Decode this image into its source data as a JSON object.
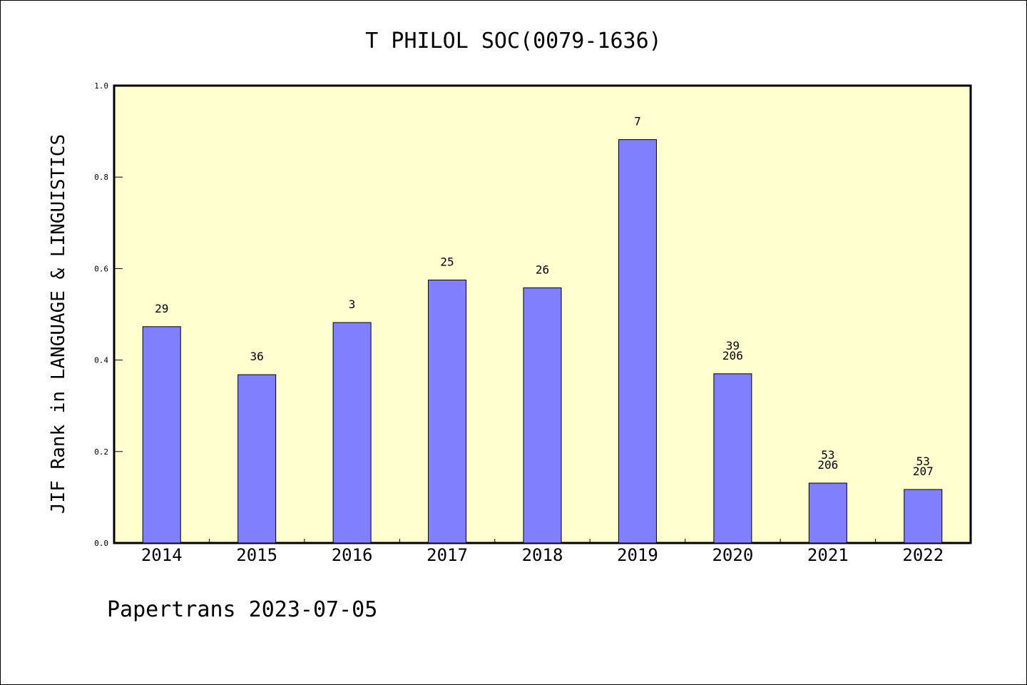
{
  "chart_data": {
    "type": "bar",
    "title": "T PHILOL SOC(0079-1636)",
    "xlabel": "",
    "ylabel": "JIF Rank in LANGUAGE & LINGUISTICS",
    "ylim": [
      0.0,
      1.0
    ],
    "yticks": [
      "0.0",
      "0.2",
      "0.4",
      "0.6",
      "0.8",
      "1.0"
    ],
    "categories": [
      "2014",
      "2015",
      "2016",
      "2017",
      "2018",
      "2019",
      "2020",
      "2021",
      "2022"
    ],
    "values": [
      0.473,
      0.368,
      0.482,
      0.575,
      0.558,
      0.882,
      0.37,
      0.131,
      0.117
    ],
    "labels": [
      [
        "29"
      ],
      [
        "36"
      ],
      [
        "3"
      ],
      [
        "25"
      ],
      [
        "26"
      ],
      [
        "7"
      ],
      [
        "39",
        "206"
      ],
      [
        "53",
        "206"
      ],
      [
        "53",
        "207"
      ]
    ],
    "grid": false,
    "bar_color": "#8080ff",
    "plot_background": "#ffffd0"
  },
  "footer": "Papertrans 2023-07-05"
}
